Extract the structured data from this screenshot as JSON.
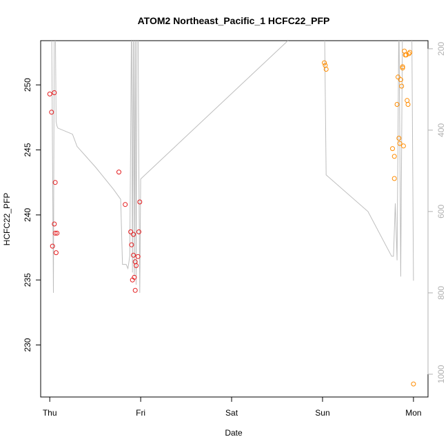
{
  "chart_data": {
    "type": "scatter",
    "title": "ATOM2 Northeast_Pacific_1 HCFC22_PFP",
    "xlabel": "Date",
    "ylabel": "HCFC22_PFP",
    "x_ticks": [
      "Thu",
      "Fri",
      "Sat",
      "Sun",
      "Mon"
    ],
    "x_range_days": [
      -0.1,
      4.16
    ],
    "y_ticks": [
      230,
      235,
      240,
      245,
      250
    ],
    "ylim": [
      226.0,
      253.4
    ],
    "y2_ticks": [
      200,
      400,
      600,
      800,
      1000
    ],
    "y2lim": [
      1056,
      180
    ],
    "grid": false,
    "colors": {
      "series_red": "#e41a1c",
      "series_orange": "#ff8c00",
      "altitude_line": "#bdbdbd",
      "axis": "#000000",
      "axis_right": "#b0b0b0"
    },
    "series": [
      {
        "color": "red",
        "x": [
          0.0,
          0.02,
          0.03,
          0.05,
          0.05,
          0.06,
          0.06,
          0.07,
          0.08,
          0.76,
          0.83,
          0.89,
          0.9,
          0.91,
          0.92,
          0.92,
          0.93,
          0.94,
          0.94,
          0.95,
          0.97,
          0.98,
          0.99
        ],
        "y": [
          249.3,
          247.9,
          237.6,
          239.3,
          249.4,
          238.6,
          242.5,
          237.1,
          238.6,
          243.3,
          240.8,
          238.7,
          237.7,
          235.0,
          236.9,
          238.5,
          235.2,
          234.2,
          236.4,
          236.1,
          236.8,
          238.7,
          241.0
        ]
      },
      {
        "color": "orange",
        "x": [
          3.02,
          3.03,
          3.04,
          3.77,
          3.79,
          3.79,
          3.82,
          3.83,
          3.84,
          3.85,
          3.86,
          3.87,
          3.88,
          3.88,
          3.89,
          3.9,
          3.91,
          3.92,
          3.93,
          3.94,
          3.95,
          3.96,
          4.0
        ],
        "y": [
          251.7,
          251.5,
          251.2,
          245.1,
          244.5,
          242.8,
          248.5,
          250.6,
          245.9,
          245.5,
          250.4,
          249.9,
          251.4,
          251.3,
          245.3,
          252.6,
          252.3,
          252.3,
          248.8,
          248.5,
          252.4,
          252.5,
          227.0
        ]
      }
    ],
    "altitude_line": {
      "x": [
        0.0,
        0.02,
        0.04,
        0.05,
        0.06,
        0.07,
        0.08,
        0.09,
        0.25,
        0.3,
        0.5,
        0.7,
        0.78,
        0.8,
        0.84,
        0.86,
        0.88,
        0.9,
        0.91,
        0.92,
        0.93,
        0.94,
        0.95,
        0.96,
        0.97,
        0.98,
        0.99,
        1.0,
        3.0,
        3.02,
        3.04,
        3.5,
        3.76,
        3.78,
        3.8,
        3.82,
        3.84,
        3.86,
        3.88,
        3.9,
        3.92,
        3.94,
        3.96,
        3.98,
        4.0
      ],
      "y": [
        100,
        100,
        800,
        100,
        100,
        380,
        390,
        395,
        410,
        440,
        490,
        545,
        570,
        730,
        730,
        740,
        710,
        100,
        750,
        100,
        760,
        100,
        780,
        100,
        100,
        510,
        800,
        520,
        100,
        100,
        510,
        600,
        710,
        710,
        580,
        720,
        100,
        760,
        100,
        100,
        100,
        100,
        100,
        100,
        770
      ]
    }
  }
}
